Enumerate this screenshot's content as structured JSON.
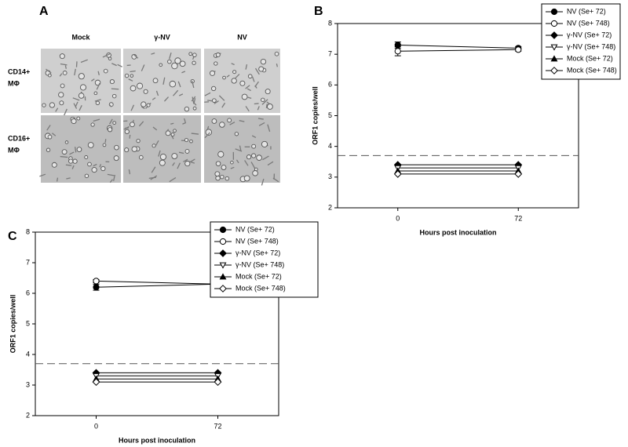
{
  "panel_a": {
    "label": "A",
    "columns": [
      "Mock",
      "γ-NV",
      "NV"
    ],
    "rows": [
      [
        "CD14+",
        "MΦ"
      ],
      [
        "CD16+",
        "MΦ"
      ]
    ]
  },
  "chart_data": [
    {
      "type": "line",
      "panel_label": "B",
      "ylabel": "ORF1 copies/well",
      "xlabel": "Hours post inoculation",
      "categories": [
        "0",
        "72"
      ],
      "ylim": [
        2,
        8
      ],
      "yticks": [
        2,
        3,
        4,
        5,
        6,
        7,
        8
      ],
      "reference_line": 3.7,
      "legend": "upper right",
      "series": [
        {
          "name": "NV (Se+ 72)",
          "marker": "circle",
          "filled": true,
          "color": "#000000",
          "values": [
            7.3,
            7.2
          ],
          "errors": [
            0.1,
            0.05
          ]
        },
        {
          "name": "NV (Se+ 748)",
          "marker": "circle",
          "filled": false,
          "color": "#000000",
          "values": [
            7.1,
            7.15
          ],
          "errors": [
            0.15,
            0.05
          ]
        },
        {
          "name": "γ-NV (Se+ 72)",
          "marker": "diamond",
          "filled": true,
          "color": "#000000",
          "values": [
            3.4,
            3.4
          ]
        },
        {
          "name": "γ-NV (Se+ 748)",
          "marker": "triangle-down",
          "filled": false,
          "color": "#000000",
          "values": [
            3.3,
            3.3
          ]
        },
        {
          "name": "Mock (Se+ 72)",
          "marker": "triangle-up",
          "filled": true,
          "color": "#000000",
          "values": [
            3.2,
            3.2
          ]
        },
        {
          "name": "Mock (Se+ 748)",
          "marker": "diamond",
          "filled": false,
          "color": "#000000",
          "values": [
            3.1,
            3.1
          ]
        }
      ]
    },
    {
      "type": "line",
      "panel_label": "C",
      "ylabel": "ORF1 copies/well",
      "xlabel": "Hours post inoculation",
      "categories": [
        "0",
        "72"
      ],
      "ylim": [
        2,
        8
      ],
      "yticks": [
        2,
        3,
        4,
        5,
        6,
        7,
        8
      ],
      "reference_line": 3.7,
      "legend": "upper right",
      "series": [
        {
          "name": "NV (Se+ 72)",
          "marker": "circle",
          "filled": true,
          "color": "#000000",
          "values": [
            6.2,
            6.3
          ],
          "errors": [
            0.1,
            0.1
          ]
        },
        {
          "name": "NV (Se+ 748)",
          "marker": "circle",
          "filled": false,
          "color": "#000000",
          "values": [
            6.4,
            6.3
          ],
          "errors": [
            0.05,
            0.2
          ]
        },
        {
          "name": "γ-NV (Se+ 72)",
          "marker": "diamond",
          "filled": true,
          "color": "#000000",
          "values": [
            3.4,
            3.4
          ]
        },
        {
          "name": "γ-NV (Se+ 748)",
          "marker": "triangle-down",
          "filled": false,
          "color": "#000000",
          "values": [
            3.3,
            3.3
          ]
        },
        {
          "name": "Mock (Se+ 72)",
          "marker": "triangle-up",
          "filled": true,
          "color": "#000000",
          "values": [
            3.2,
            3.2
          ]
        },
        {
          "name": "Mock (Se+ 748)",
          "marker": "diamond",
          "filled": false,
          "color": "#000000",
          "values": [
            3.1,
            3.1
          ]
        }
      ]
    }
  ]
}
